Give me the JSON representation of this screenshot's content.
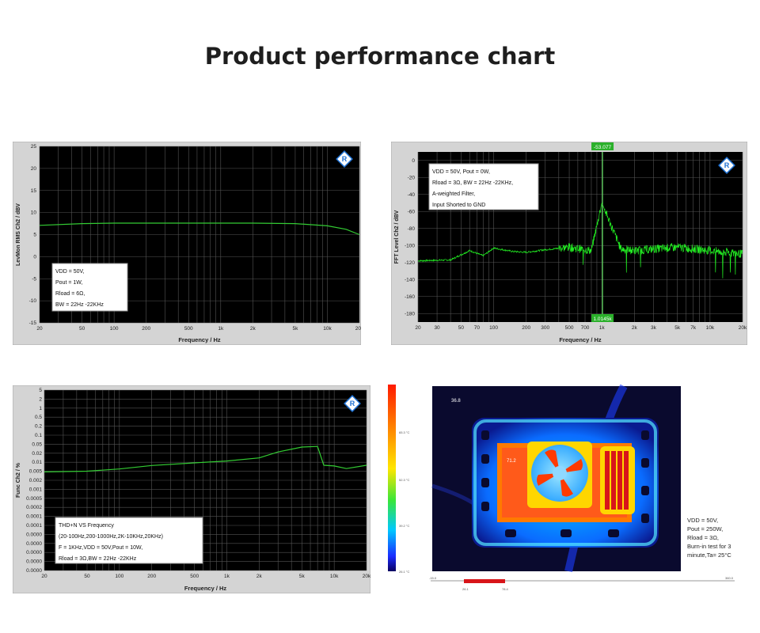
{
  "page": {
    "title": "Product performance chart"
  },
  "chart_data": [
    {
      "id": "c1",
      "type": "line",
      "ylabel": "LevMon RMS Ch2 / dBV",
      "xlabel": "Frequency / Hz",
      "x_scale": "log",
      "xlim": [
        20,
        20000
      ],
      "ylim": [
        -15,
        25
      ],
      "xticks": [
        20,
        50,
        100,
        200,
        500,
        1000,
        2000,
        5000,
        10000,
        20000
      ],
      "xtick_labels": [
        "20",
        "50",
        "100",
        "200",
        "500",
        "1k",
        "2k",
        "5k",
        "10k",
        "20k"
      ],
      "yticks": [
        -15,
        -10,
        -5,
        0,
        5,
        10,
        15,
        20,
        25
      ],
      "ytick_labels": [
        "-15",
        "-10",
        "-5",
        "0",
        "5",
        "10",
        "15",
        "20",
        "25"
      ],
      "grid": true,
      "line_color": "#33cc33",
      "series": [
        {
          "x": [
            20,
            50,
            100,
            200,
            500,
            1000,
            2000,
            5000,
            10000,
            15000,
            20000
          ],
          "y": [
            7.1,
            7.5,
            7.6,
            7.6,
            7.6,
            7.6,
            7.6,
            7.5,
            7.0,
            6.2,
            5.0
          ]
        }
      ],
      "annotation": [
        "VDD = 50V,",
        "Pout = 1W,",
        "Rload = 6Ω,",
        "BW = 22Hz -22KHz"
      ]
    },
    {
      "id": "c2",
      "type": "line",
      "ylabel": "FFT Level Ch2 / dBV",
      "xlabel": "Frequency / Hz",
      "x_scale": "log",
      "xlim": [
        20,
        20000
      ],
      "ylim": [
        -190,
        10
      ],
      "xticks": [
        20,
        30,
        50,
        70,
        100,
        200,
        300,
        500,
        700,
        1000,
        2000,
        3000,
        5000,
        7000,
        10000,
        20000
      ],
      "xtick_labels": [
        "20",
        "30",
        "50",
        "70",
        "100",
        "200",
        "300",
        "500",
        "700",
        "1k",
        "2k",
        "3k",
        "5k",
        "7k",
        "10k",
        "20k"
      ],
      "yticks": [
        0,
        -20,
        -40,
        -60,
        -80,
        -100,
        -120,
        -140,
        -160,
        -180
      ],
      "ytick_labels": [
        "0",
        "-20",
        "-40",
        "-60",
        "-80",
        "-100",
        "-120",
        "-140",
        "-160",
        "-180"
      ],
      "grid": true,
      "line_color": "#22ee22",
      "cursor_x": 1014.5,
      "cursor_x_label": "1.0145k",
      "cursor_y_label": "-53.077",
      "series": [
        {
          "x": [
            20,
            40,
            60,
            80,
            100,
            150,
            200,
            300,
            500,
            800,
            1000,
            1500,
            2000,
            5000,
            10000,
            20000
          ],
          "y": [
            -118,
            -117,
            -106,
            -112,
            -103,
            -107,
            -108,
            -105,
            -102,
            -106,
            -50,
            -104,
            -106,
            -102,
            -106,
            -110
          ]
        }
      ],
      "annotation": [
        "VDD = 50V, Pout = 0W,",
        "Rload = 3Ω, BW = 22Hz -22KHz,",
        "A-weighted Filter,",
        "Input Shorted to GND"
      ]
    },
    {
      "id": "c3",
      "type": "line",
      "ylabel": "Func Ch2 / %",
      "xlabel": "Frequency / Hz",
      "x_scale": "log",
      "xlim": [
        20,
        20000
      ],
      "ylim_labels": [
        "5",
        "2",
        "1",
        "0.5",
        "0.2",
        "0.1",
        "0.05",
        "0.02",
        "0.01",
        "0.005",
        "0.002",
        "0.001",
        "0.0005",
        "0.0002",
        "0.0001",
        "0.0001",
        "0.0000",
        "0.0000",
        "0.0000",
        "0.0000",
        "0.0000"
      ],
      "xticks": [
        20,
        50,
        100,
        200,
        500,
        1000,
        2000,
        5000,
        10000,
        20000
      ],
      "xtick_labels": [
        "20",
        "50",
        "100",
        "200",
        "500",
        "1k",
        "2k",
        "5k",
        "10k",
        "20k"
      ],
      "grid": true,
      "line_color": "#33cc33",
      "series": [
        {
          "x": [
            20,
            50,
            100,
            200,
            500,
            1000,
            2000,
            3000,
            5000,
            7000,
            8000,
            10000,
            13000,
            20000
          ],
          "y": [
            0.0045,
            0.0048,
            0.0058,
            0.0078,
            0.0098,
            0.0115,
            0.015,
            0.025,
            0.038,
            0.04,
            0.008,
            0.0075,
            0.006,
            0.008
          ]
        }
      ],
      "annotation": [
        "THD+N VS  Frequency",
        "(20-100Hz,200-1000Hz,2K-10KHz,20KHz)",
        "F = 1KHz,VDD = 50V,Pout = 10W,",
        "Rload = 3Ω,BW = 22Hz -22KHz"
      ]
    }
  ],
  "thermal": {
    "scale_labels": [
      "65.3 °C",
      "52.3 °C",
      "39.2 °C",
      "26.1 °C"
    ],
    "spot_labels": [
      "36.8",
      "71.2"
    ],
    "range_labels": [
      "-15.0",
      "360.0"
    ],
    "range_markers": [
      "26.1",
      "78.4"
    ],
    "note": [
      "VDD = 50V,",
      "Pout = 250W,",
      "Rload = 3Ω,",
      "Burn-in test for 3",
      "minute,Ta= 25°C"
    ]
  }
}
